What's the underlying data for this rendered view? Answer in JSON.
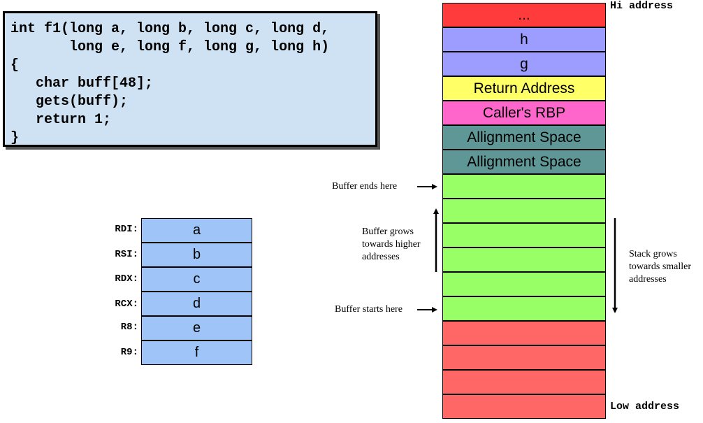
{
  "code": {
    "lines": [
      "int f1(long a, long b, long c, long d,",
      "       long e, long f, long g, long h)",
      "{",
      "   char buff[48];",
      "   gets(buff);",
      "   return 1;",
      "}"
    ]
  },
  "registers": [
    {
      "name": "RDI:",
      "value": "a"
    },
    {
      "name": "RSI:",
      "value": "b"
    },
    {
      "name": "RDX:",
      "value": "c"
    },
    {
      "name": "RCX:",
      "value": "d"
    },
    {
      "name": "R8:",
      "value": "e"
    },
    {
      "name": "R9:",
      "value": "f"
    }
  ],
  "stack": {
    "hi_label": "Hi address",
    "low_label": "Low address",
    "cells": [
      {
        "label": "...",
        "color": "#ff3b3b"
      },
      {
        "label": "h",
        "color": "#9d9dff"
      },
      {
        "label": "g",
        "color": "#9d9dff"
      },
      {
        "label": "Return Address",
        "color": "#ffff66"
      },
      {
        "label": "Caller's RBP",
        "color": "#ff66cc"
      },
      {
        "label": "Allignment Space",
        "color": "#5f9797"
      },
      {
        "label": "Allignment Space",
        "color": "#5f9797"
      },
      {
        "label": "",
        "color": "#99ff66"
      },
      {
        "label": "",
        "color": "#99ff66"
      },
      {
        "label": "",
        "color": "#99ff66"
      },
      {
        "label": "",
        "color": "#99ff66"
      },
      {
        "label": "",
        "color": "#99ff66"
      },
      {
        "label": "",
        "color": "#99ff66"
      },
      {
        "label": "",
        "color": "#ff6666"
      },
      {
        "label": "",
        "color": "#ff6666"
      },
      {
        "label": "",
        "color": "#ff6666"
      },
      {
        "label": "",
        "color": "#ff6666"
      }
    ]
  },
  "annotations": {
    "buffer_ends": "Buffer ends here",
    "buffer_starts": "Buffer starts here",
    "buffer_grows": [
      "Buffer grows",
      "towards higher",
      "addresses"
    ],
    "stack_grows": [
      "Stack grows",
      "towards smaller",
      "addresses"
    ]
  }
}
